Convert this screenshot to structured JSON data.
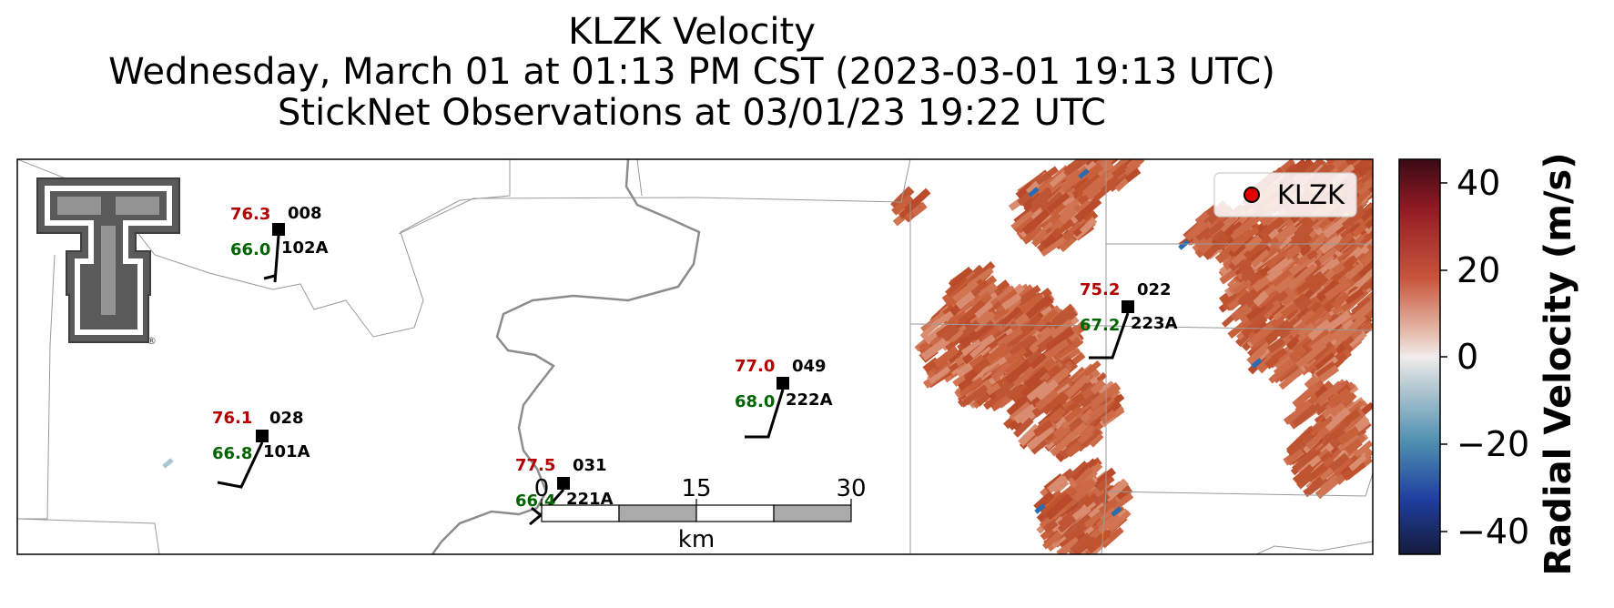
{
  "title": {
    "line1": "KLZK Velocity",
    "line2": "Wednesday, March 01 at 01:13 PM CST (2023-03-01 19:13 UTC)",
    "line3": "StickNet Observations at 03/01/23 19:22 UTC"
  },
  "legend": {
    "label": "KLZK",
    "marker_color": "#e00000",
    "placement": "top-right"
  },
  "colorbar": {
    "label": "Radial Velocity (m/s)",
    "ticks": [
      "40",
      "20",
      "0",
      "−20",
      "−40"
    ],
    "range": [
      -45,
      45
    ],
    "colormap": "balance (blue-white-red)"
  },
  "scale_bar": {
    "ticks": [
      "0",
      "15",
      "30"
    ],
    "unit": "km"
  },
  "stations": [
    {
      "id": "102A",
      "temp": "76.3",
      "dew": "66.0",
      "pressure": "008"
    },
    {
      "id": "101A",
      "temp": "76.1",
      "dew": "66.8",
      "pressure": "028"
    },
    {
      "id": "221A",
      "temp": "77.5",
      "dew": "66.4",
      "pressure": "031"
    },
    {
      "id": "222A",
      "temp": "77.0",
      "dew": "68.0",
      "pressure": "049"
    },
    {
      "id": "223A",
      "temp": "75.2",
      "dew": "67.2",
      "pressure": "022"
    }
  ],
  "colors": {
    "temp": "#b30000",
    "dew": "#006400",
    "velocity_main": "#c85a3c",
    "boundary": "#888888"
  },
  "logo": {
    "name": "Texas Tech Double T",
    "trademark": "®"
  }
}
